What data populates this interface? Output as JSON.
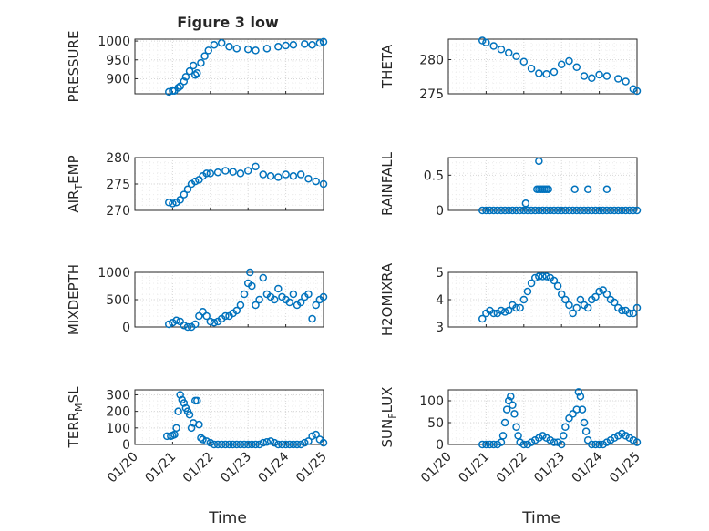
{
  "figure": {
    "title": "Figure 3 low",
    "xlabel": "Time",
    "xticks": [
      "01/20",
      "01/21",
      "01/22",
      "01/23",
      "01/24",
      "01/25"
    ],
    "marker_color": "#0072BD"
  },
  "chart_data": [
    {
      "type": "scatter",
      "title": "Figure 3 low",
      "ylabel": "PRESSURE",
      "xlim": [
        0,
        5
      ],
      "ylim": [
        860,
        1005
      ],
      "yticks": [
        "900",
        "950",
        "1000"
      ],
      "x": [
        0.9,
        1.0,
        1.05,
        1.15,
        1.2,
        1.3,
        1.35,
        1.45,
        1.55,
        1.6,
        1.65,
        1.75,
        1.85,
        1.95,
        2.1,
        2.3,
        2.5,
        2.7,
        3.0,
        3.2,
        3.5,
        3.8,
        4.0,
        4.2,
        4.5,
        4.7,
        4.9,
        5.0
      ],
      "y": [
        865,
        868,
        868,
        876,
        880,
        893,
        905,
        920,
        935,
        910,
        915,
        942,
        960,
        975,
        990,
        995,
        985,
        980,
        978,
        975,
        980,
        985,
        988,
        990,
        992,
        990,
        995,
        998
      ]
    },
    {
      "type": "scatter",
      "ylabel": "THETA",
      "xlim": [
        0,
        5
      ],
      "ylim": [
        275,
        283
      ],
      "yticks": [
        "275",
        "280"
      ],
      "x": [
        0.9,
        1.0,
        1.2,
        1.4,
        1.6,
        1.8,
        2.0,
        2.2,
        2.4,
        2.6,
        2.8,
        3.0,
        3.2,
        3.4,
        3.6,
        3.8,
        4.0,
        4.2,
        4.5,
        4.7,
        4.9,
        5.0
      ],
      "y": [
        282.8,
        282.5,
        282.0,
        281.5,
        281.0,
        280.5,
        279.7,
        278.7,
        278.0,
        277.9,
        278.2,
        279.3,
        279.8,
        278.9,
        277.6,
        277.3,
        277.8,
        277.6,
        277.2,
        276.8,
        275.7,
        275.4
      ]
    },
    {
      "type": "scatter",
      "ylabel": "AIR_TEMP",
      "xlim": [
        0,
        5
      ],
      "ylim": [
        270,
        280
      ],
      "yticks": [
        "270",
        "275",
        "280"
      ],
      "x": [
        0.9,
        1.0,
        1.1,
        1.2,
        1.3,
        1.4,
        1.5,
        1.6,
        1.7,
        1.8,
        1.9,
        2.0,
        2.2,
        2.4,
        2.6,
        2.8,
        3.0,
        3.2,
        3.4,
        3.6,
        3.8,
        4.0,
        4.2,
        4.4,
        4.6,
        4.8,
        5.0
      ],
      "y": [
        271.5,
        271.3,
        271.5,
        272.0,
        273.0,
        274.0,
        275.0,
        275.5,
        275.8,
        276.5,
        277.0,
        277.0,
        277.2,
        277.5,
        277.3,
        277.0,
        277.5,
        278.3,
        276.8,
        276.5,
        276.3,
        276.8,
        276.5,
        276.8,
        276.0,
        275.5,
        275.0
      ]
    },
    {
      "type": "scatter",
      "ylabel": "RAINFALL",
      "xlim": [
        0,
        5
      ],
      "ylim": [
        0,
        0.75
      ],
      "yticks": [
        "0",
        "0.5"
      ],
      "x": [
        0.9,
        1.0,
        1.1,
        1.2,
        1.3,
        1.4,
        1.5,
        1.6,
        1.7,
        1.8,
        1.9,
        2.0,
        2.1,
        2.2,
        2.3,
        2.4,
        2.5,
        2.6,
        2.7,
        2.8,
        2.9,
        3.0,
        3.1,
        3.2,
        3.3,
        3.4,
        3.5,
        3.6,
        3.7,
        3.8,
        3.9,
        4.0,
        4.1,
        4.2,
        4.3,
        4.4,
        4.5,
        4.6,
        4.7,
        4.8,
        4.9,
        5.0,
        2.05,
        2.35,
        2.4,
        2.45,
        2.5,
        2.55,
        2.6,
        2.65,
        3.35,
        3.7,
        4.2,
        2.4
      ],
      "y": [
        0,
        0,
        0,
        0,
        0,
        0,
        0,
        0,
        0,
        0,
        0,
        0,
        0,
        0,
        0,
        0,
        0,
        0,
        0,
        0,
        0,
        0,
        0,
        0,
        0,
        0,
        0,
        0,
        0,
        0,
        0,
        0,
        0,
        0,
        0,
        0,
        0,
        0,
        0,
        0,
        0,
        0,
        0.1,
        0.3,
        0.3,
        0.3,
        0.3,
        0.3,
        0.3,
        0.3,
        0.3,
        0.3,
        0.3,
        0.7
      ]
    },
    {
      "type": "scatter",
      "ylabel": "MIXDEPTH",
      "xlim": [
        0,
        5
      ],
      "ylim": [
        0,
        1000
      ],
      "yticks": [
        "0",
        "500",
        "1000"
      ],
      "x": [
        0.9,
        1.0,
        1.1,
        1.2,
        1.3,
        1.4,
        1.5,
        1.6,
        1.7,
        1.8,
        1.9,
        2.0,
        2.1,
        2.2,
        2.3,
        2.4,
        2.5,
        2.6,
        2.7,
        2.8,
        2.9,
        3.0,
        3.05,
        3.1,
        3.2,
        3.3,
        3.4,
        3.5,
        3.6,
        3.7,
        3.8,
        3.9,
        4.0,
        4.1,
        4.2,
        4.3,
        4.4,
        4.5,
        4.6,
        4.7,
        4.8,
        4.9,
        5.0
      ],
      "y": [
        50,
        80,
        120,
        100,
        30,
        0,
        0,
        50,
        200,
        280,
        200,
        100,
        80,
        100,
        150,
        200,
        200,
        250,
        300,
        400,
        600,
        800,
        1000,
        750,
        400,
        500,
        900,
        600,
        550,
        500,
        700,
        550,
        500,
        450,
        600,
        400,
        450,
        550,
        600,
        150,
        400,
        500,
        550
      ]
    },
    {
      "type": "scatter",
      "ylabel": "H2OMIXRA",
      "xlim": [
        0,
        5
      ],
      "ylim": [
        3,
        5
      ],
      "yticks": [
        "3",
        "4",
        "5"
      ],
      "x": [
        0.9,
        1.0,
        1.1,
        1.2,
        1.3,
        1.4,
        1.5,
        1.6,
        1.7,
        1.8,
        1.9,
        2.0,
        2.1,
        2.2,
        2.3,
        2.4,
        2.5,
        2.6,
        2.7,
        2.8,
        2.9,
        3.0,
        3.1,
        3.2,
        3.3,
        3.4,
        3.5,
        3.6,
        3.7,
        3.8,
        3.9,
        4.0,
        4.1,
        4.2,
        4.3,
        4.4,
        4.5,
        4.6,
        4.7,
        4.8,
        4.9,
        5.0
      ],
      "y": [
        3.3,
        3.5,
        3.6,
        3.5,
        3.5,
        3.6,
        3.55,
        3.6,
        3.8,
        3.7,
        3.7,
        4.0,
        4.3,
        4.6,
        4.8,
        4.85,
        4.85,
        4.85,
        4.8,
        4.7,
        4.5,
        4.2,
        4.0,
        3.8,
        3.5,
        3.7,
        4.0,
        3.8,
        3.7,
        4.0,
        4.1,
        4.3,
        4.35,
        4.2,
        4.0,
        3.9,
        3.7,
        3.6,
        3.6,
        3.5,
        3.5,
        3.7
      ]
    },
    {
      "type": "scatter",
      "ylabel": "TERR_MSL",
      "xlim": [
        0,
        5
      ],
      "ylim": [
        0,
        330
      ],
      "yticks": [
        "0",
        "100",
        "200",
        "300"
      ],
      "x": [
        0.85,
        0.95,
        1.0,
        1.05,
        1.1,
        1.15,
        1.2,
        1.25,
        1.3,
        1.35,
        1.4,
        1.45,
        1.5,
        1.55,
        1.6,
        1.65,
        1.7,
        1.75,
        1.8,
        1.9,
        2.0,
        2.1,
        2.2,
        2.3,
        2.4,
        2.5,
        2.6,
        2.7,
        2.8,
        2.9,
        3.0,
        3.1,
        3.2,
        3.3,
        3.4,
        3.5,
        3.6,
        3.7,
        3.8,
        3.9,
        4.0,
        4.1,
        4.2,
        4.3,
        4.4,
        4.5,
        4.6,
        4.7,
        4.8,
        4.9,
        5.0
      ],
      "y": [
        50,
        50,
        55,
        60,
        100,
        200,
        300,
        270,
        250,
        220,
        200,
        180,
        100,
        130,
        265,
        265,
        120,
        40,
        30,
        20,
        10,
        0,
        0,
        0,
        0,
        0,
        0,
        0,
        0,
        0,
        0,
        0,
        0,
        0,
        10,
        15,
        20,
        10,
        0,
        0,
        0,
        0,
        0,
        0,
        0,
        10,
        20,
        50,
        60,
        30,
        10
      ]
    },
    {
      "type": "scatter",
      "ylabel": "SUN_FLUX",
      "xlim": [
        0,
        5
      ],
      "ylim": [
        0,
        125
      ],
      "yticks": [
        "0",
        "50",
        "100"
      ],
      "x": [
        0.9,
        1.0,
        1.1,
        1.2,
        1.3,
        1.4,
        1.45,
        1.5,
        1.55,
        1.6,
        1.65,
        1.7,
        1.75,
        1.8,
        1.85,
        1.9,
        2.0,
        2.1,
        2.2,
        2.3,
        2.4,
        2.5,
        2.6,
        2.7,
        2.8,
        2.9,
        3.0,
        3.05,
        3.1,
        3.2,
        3.3,
        3.4,
        3.45,
        3.5,
        3.55,
        3.6,
        3.65,
        3.7,
        3.8,
        3.9,
        4.0,
        4.1,
        4.2,
        4.3,
        4.4,
        4.5,
        4.6,
        4.7,
        4.8,
        4.9,
        5.0
      ],
      "y": [
        0,
        0,
        0,
        0,
        0,
        5,
        20,
        50,
        80,
        100,
        110,
        90,
        70,
        40,
        20,
        5,
        0,
        0,
        5,
        10,
        15,
        20,
        15,
        10,
        5,
        5,
        0,
        20,
        40,
        60,
        70,
        80,
        120,
        110,
        80,
        50,
        30,
        10,
        0,
        0,
        0,
        0,
        5,
        10,
        15,
        20,
        25,
        20,
        15,
        10,
        5
      ]
    }
  ]
}
